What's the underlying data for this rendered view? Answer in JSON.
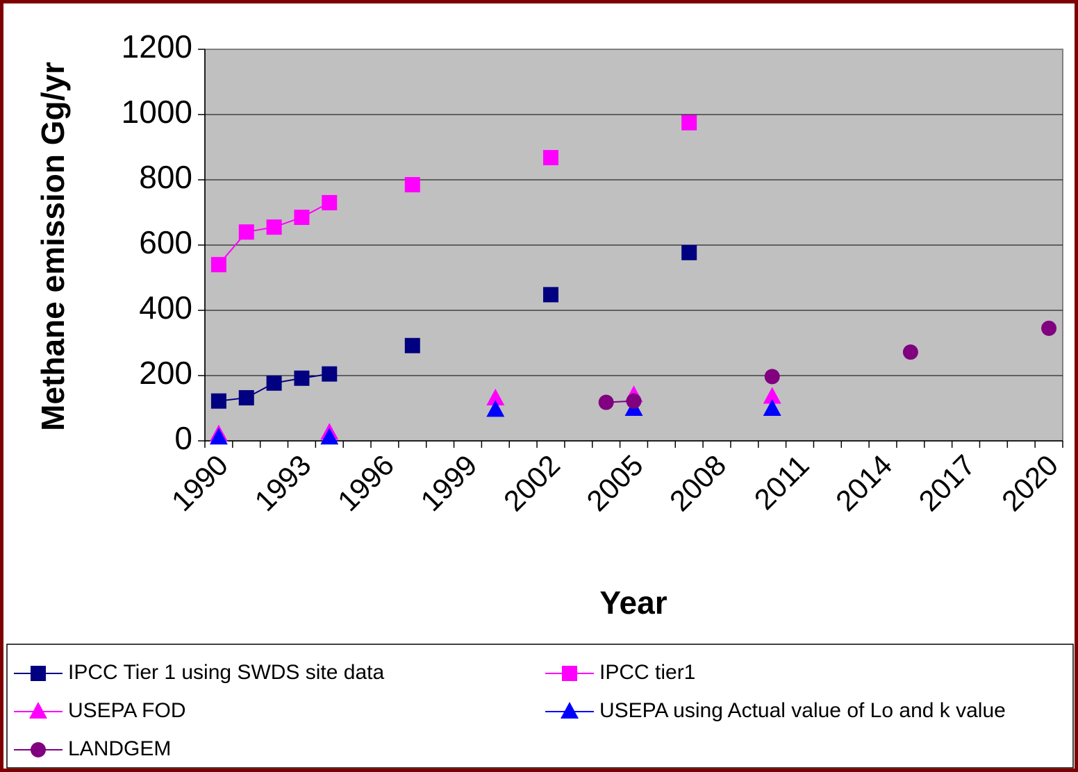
{
  "chart_data": {
    "type": "line",
    "y_label": "Methane emission Gg/yr",
    "x_label": "Year",
    "categories": [
      "1990",
      null,
      null,
      "1993",
      null,
      null,
      "1996",
      null,
      null,
      "1999",
      null,
      null,
      "2002",
      null,
      null,
      "2005",
      null,
      null,
      "2008",
      null,
      null,
      "2011",
      null,
      null,
      "2014",
      null,
      null,
      "2017",
      null,
      null,
      "2020"
    ],
    "series": [
      {
        "name": "IPCC Tier 1 using SWDS site data",
        "color": "#000080",
        "marker": "square",
        "values": [
          122,
          132,
          177,
          192,
          205,
          null,
          null,
          292,
          null,
          null,
          null,
          null,
          448,
          null,
          null,
          null,
          null,
          577,
          null,
          null,
          null,
          null,
          null,
          null,
          null,
          null,
          null,
          null,
          null,
          null,
          null
        ]
      },
      {
        "name": "IPCC tier1",
        "color": "#ff00ff",
        "marker": "square",
        "values": [
          540,
          640,
          655,
          685,
          730,
          null,
          null,
          785,
          null,
          null,
          null,
          null,
          868,
          null,
          null,
          null,
          null,
          975,
          null,
          null,
          null,
          null,
          null,
          null,
          null,
          null,
          null,
          null,
          null,
          null,
          null
        ]
      },
      {
        "name": "USEPA FOD",
        "color": "#ff00ff",
        "marker": "triangle",
        "values": [
          20,
          null,
          null,
          null,
          25,
          null,
          null,
          null,
          null,
          null,
          130,
          null,
          null,
          null,
          null,
          140,
          null,
          null,
          null,
          null,
          135,
          null,
          null,
          null,
          null,
          null,
          null,
          null,
          null,
          null,
          null
        ]
      },
      {
        "name": "USEPA  using Actual value of Lo and k value",
        "color": "#0000ff",
        "marker": "triangle",
        "values": [
          10,
          null,
          null,
          null,
          10,
          null,
          null,
          null,
          null,
          null,
          95,
          null,
          null,
          null,
          null,
          98,
          null,
          null,
          null,
          null,
          98,
          null,
          null,
          null,
          null,
          null,
          null,
          null,
          null,
          null,
          null
        ]
      },
      {
        "name": "LANDGEM",
        "color": "#800080",
        "marker": "circle",
        "values": [
          null,
          null,
          null,
          null,
          null,
          null,
          null,
          null,
          null,
          null,
          null,
          null,
          null,
          null,
          118,
          122,
          null,
          null,
          null,
          null,
          197,
          null,
          null,
          null,
          null,
          272,
          null,
          null,
          null,
          null,
          345
        ]
      }
    ],
    "ylim": [
      0,
      1200
    ],
    "yticks": [
      0,
      200,
      400,
      600,
      800,
      1000,
      1200
    ],
    "grid": true,
    "legend": "bottom"
  }
}
